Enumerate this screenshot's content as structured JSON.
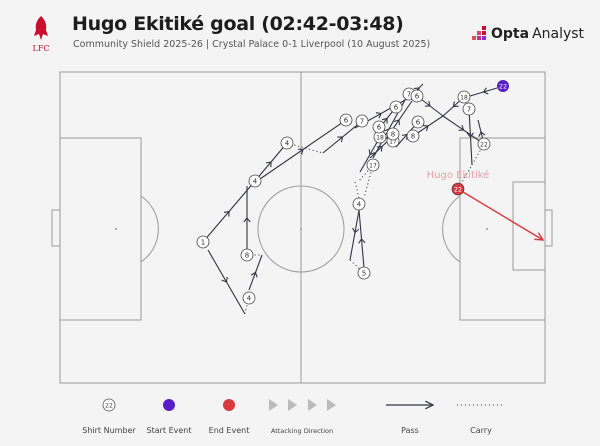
{
  "header": {
    "title": "Hugo Ekitiké goal (02:42-03:48)",
    "subtitle": "Community Shield 2025-26 | Crystal Palace 0-1 Liverpool (10 August 2025)",
    "club_logo_text": "LFC",
    "brand_bold": "Opta",
    "brand_light": "Analyst"
  },
  "colors": {
    "start": "#5a1fc4",
    "end": "#d83a40",
    "line": "#333344",
    "pitch": "#999999",
    "label": "#e7a0a4"
  },
  "scorer_label": "Hugo Ekitiké",
  "nodes": [
    "1",
    "4",
    "4",
    "8",
    "4",
    "4",
    "5",
    "17",
    "18",
    "17",
    "6",
    "7",
    "6",
    "6",
    "7",
    "6",
    "8",
    "6",
    "8",
    "18",
    "7",
    "22"
  ],
  "start_node": "22",
  "end_node": "22",
  "legend": {
    "shirt_number": "Shirt Number",
    "shirt_example": "22",
    "start_event": "Start Event",
    "end_event": "End Event",
    "attacking_direction": "Attacking Direction",
    "pass": "Pass",
    "carry": "Carry"
  }
}
